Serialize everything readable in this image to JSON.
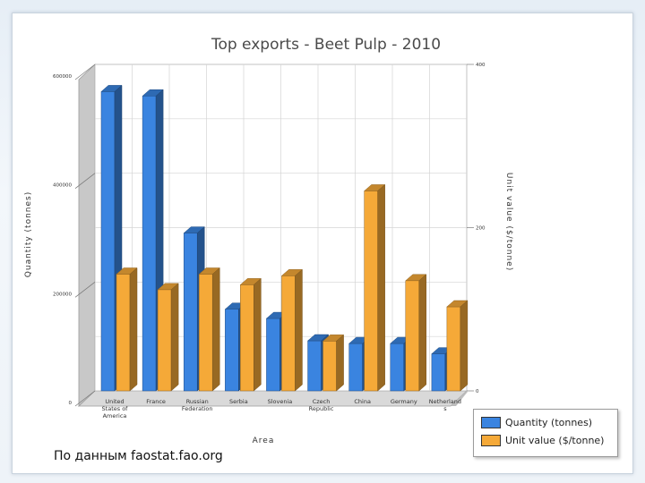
{
  "chart_data": {
    "type": "bar",
    "title": "Top exports - Beet Pulp - 2010",
    "xlabel": "Area",
    "ylabel": "Quantity (tonnes)",
    "y2label": "Unit value ($/tonne)",
    "categories": [
      "United States of America",
      "France",
      "Russian Federation",
      "Serbia",
      "Slovenia",
      "Czech Republic",
      "China",
      "Germany",
      "Netherlands"
    ],
    "category_lines": [
      [
        "United",
        "States of",
        "America"
      ],
      [
        "France"
      ],
      [
        "Russian",
        "Federation"
      ],
      [
        "Serbia"
      ],
      [
        "Slovenia"
      ],
      [
        "Czech",
        "Republic"
      ],
      [
        "China"
      ],
      [
        "Germany"
      ],
      [
        "Netherland",
        "s"
      ]
    ],
    "series": [
      {
        "name": "Quantity (tonnes)",
        "axis": "left",
        "color": "#3a84e0",
        "values": [
          550000,
          542000,
          290000,
          150000,
          133000,
          92000,
          87000,
          87000,
          68000
        ]
      },
      {
        "name": "Unit value ($/tonne)",
        "axis": "right",
        "color": "#f5a938",
        "values": [
          143,
          124,
          143,
          130,
          141,
          61,
          245,
          135,
          103
        ]
      }
    ],
    "ylim": [
      0,
      600000
    ],
    "y_ticks": [
      "0",
      "200000",
      "400000",
      "600000"
    ],
    "y2lim": [
      0,
      400
    ],
    "y2_ticks": [
      "0",
      "200",
      "400"
    ],
    "grid": true,
    "legend": "bottom-right"
  },
  "source_note": "По данным faostat.fao.org"
}
